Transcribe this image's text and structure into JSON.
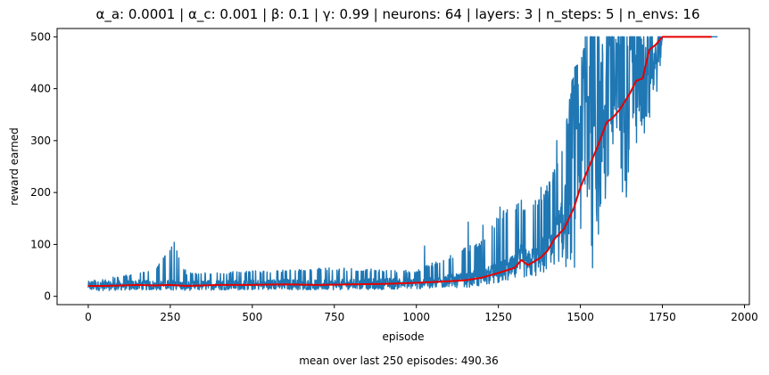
{
  "chart_data": {
    "type": "line",
    "title": "α_a: 0.0001 | α_c: 0.001 | β: 0.1 | γ: 0.99 | neurons: 64 | layers: 3 | n_steps: 5 | n_envs: 16",
    "xlabel": "episode",
    "ylabel": "reward earned",
    "caption": "mean over last 250 episodes: 490.36",
    "xlim": [
      -95,
      2015
    ],
    "ylim": [
      -16,
      516
    ],
    "xticks": [
      0,
      250,
      500,
      750,
      1000,
      1250,
      1500,
      1750,
      2000
    ],
    "yticks": [
      0,
      100,
      200,
      300,
      400,
      500
    ],
    "grid": false,
    "legend": "none",
    "colors": {
      "reward": "#1f77b4",
      "moving_average": "#e50000"
    },
    "reward_envelope": {
      "x": [
        0,
        100,
        200,
        260,
        300,
        500,
        750,
        1000,
        1100,
        1200,
        1250,
        1300,
        1350,
        1400,
        1450,
        1480,
        1500,
        1520,
        1550,
        1600,
        1650,
        1700,
        1740,
        1750,
        1800,
        1918
      ],
      "upper": [
        30,
        40,
        50,
        104,
        45,
        50,
        55,
        50,
        80,
        110,
        160,
        180,
        190,
        220,
        300,
        440,
        450,
        500,
        500,
        500,
        500,
        500,
        500,
        500,
        500,
        500
      ],
      "lower": [
        10,
        10,
        10,
        12,
        10,
        10,
        12,
        14,
        15,
        15,
        15,
        18,
        20,
        22,
        25,
        35,
        40,
        50,
        60,
        120,
        200,
        280,
        400,
        500,
        500,
        500
      ]
    },
    "spikes": [
      {
        "x": 262,
        "y": 104
      },
      {
        "x": 1025,
        "y": 97
      },
      {
        "x": 1158,
        "y": 143
      },
      {
        "x": 1203,
        "y": 137
      },
      {
        "x": 1255,
        "y": 172
      },
      {
        "x": 1320,
        "y": 185
      },
      {
        "x": 1380,
        "y": 210
      },
      {
        "x": 1405,
        "y": 220
      },
      {
        "x": 1428,
        "y": 300
      },
      {
        "x": 1490,
        "y": 445
      },
      {
        "x": 1515,
        "y": 500
      },
      {
        "x": 1537,
        "y": 55
      }
    ],
    "moving_average": {
      "x": [
        0,
        50,
        100,
        150,
        200,
        250,
        300,
        400,
        500,
        600,
        700,
        800,
        900,
        1000,
        1100,
        1150,
        1200,
        1250,
        1300,
        1320,
        1340,
        1380,
        1400,
        1420,
        1450,
        1480,
        1500,
        1520,
        1550,
        1580,
        1600,
        1620,
        1650,
        1670,
        1690,
        1710,
        1730,
        1750,
        1800,
        1900
      ],
      "y": [
        20,
        20,
        21,
        22,
        21,
        22,
        20,
        22,
        22,
        23,
        22,
        23,
        24,
        26,
        29,
        31,
        36,
        45,
        55,
        70,
        60,
        75,
        88,
        110,
        130,
        170,
        210,
        240,
        285,
        335,
        345,
        360,
        390,
        415,
        420,
        475,
        485,
        500,
        500,
        500
      ]
    }
  }
}
